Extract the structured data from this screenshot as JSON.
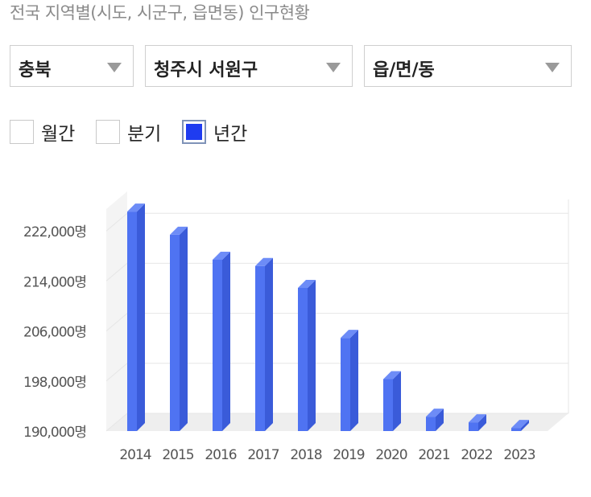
{
  "page_title": "전국 지역별(시도, 시군구, 읍면동) 인구현황",
  "selects": {
    "province": "충북",
    "district": "청주시 서원구",
    "town": "읍/면/동"
  },
  "period_options": [
    {
      "label": "월간",
      "checked": false
    },
    {
      "label": "분기",
      "checked": false
    },
    {
      "label": "년간",
      "checked": true
    }
  ],
  "colors": {
    "bar_front": "#4f73f2",
    "bar_side": "#3a5bd9",
    "bar_top": "#6d8cf7",
    "grid": "#e6e6e6",
    "axis_text": "#555555"
  },
  "chart_data": {
    "type": "bar",
    "categories": [
      "2014",
      "2015",
      "2016",
      "2017",
      "2018",
      "2019",
      "2020",
      "2021",
      "2022",
      "2023"
    ],
    "values": [
      225100,
      221400,
      217400,
      216400,
      212900,
      204900,
      198300,
      192300,
      191400,
      190500
    ],
    "ylim": [
      190000,
      225500
    ],
    "yticks": [
      190000,
      198000,
      206000,
      214000,
      222000
    ],
    "ytick_labels": [
      "190,000명",
      "198,000명",
      "206,000명",
      "214,000명",
      "222,000명"
    ],
    "grid": true,
    "three_d": true
  }
}
